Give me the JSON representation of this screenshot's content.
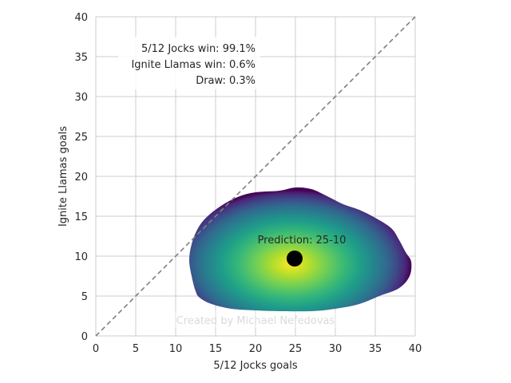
{
  "chart_data": {
    "type": "heatmap",
    "title": "",
    "xlabel": "5/12 Jocks goals",
    "ylabel": "Ignite Llamas goals",
    "xlim": [
      0,
      40
    ],
    "ylim": [
      0,
      40
    ],
    "x_ticks": [
      "0",
      "5",
      "10",
      "15",
      "20",
      "25",
      "30",
      "35",
      "40"
    ],
    "y_ticks": [
      "0",
      "5",
      "10",
      "15",
      "20",
      "25",
      "30",
      "35",
      "40"
    ],
    "grid": true,
    "colormap": "viridis",
    "diagonal": {
      "from": [
        0,
        0
      ],
      "to": [
        40,
        40
      ],
      "style": "dashed",
      "color": "#808080"
    },
    "density": {
      "center": [
        24.5,
        9
      ],
      "boundary": [
        [
          12.5,
          5.6
        ],
        [
          12,
          7.5
        ],
        [
          11.7,
          9.5
        ],
        [
          12,
          11.5
        ],
        [
          12.8,
          13.5
        ],
        [
          14,
          15
        ],
        [
          16,
          16.5
        ],
        [
          18,
          17.5
        ],
        [
          20,
          18
        ],
        [
          23,
          18.2
        ],
        [
          25,
          18.6
        ],
        [
          27,
          18.4
        ],
        [
          29,
          17.5
        ],
        [
          31,
          16.5
        ],
        [
          33,
          15.8
        ],
        [
          35,
          14.8
        ],
        [
          37,
          13.5
        ],
        [
          38,
          12
        ],
        [
          38.8,
          10.5
        ],
        [
          39.5,
          9.3
        ],
        [
          39.3,
          7.5
        ],
        [
          38,
          6
        ],
        [
          35.5,
          5
        ],
        [
          33,
          4
        ],
        [
          30,
          3.4
        ],
        [
          27,
          3.1
        ],
        [
          23,
          3.1
        ],
        [
          20,
          3.2
        ],
        [
          17,
          3.4
        ],
        [
          14.5,
          4
        ],
        [
          13,
          4.8
        ]
      ]
    },
    "prediction": {
      "x": 25,
      "y": 10,
      "label": "Prediction: 25-10"
    },
    "annotations": {
      "win_team1": "5/12 Jocks win: 99.1%",
      "win_team2": "Ignite Llamas win: 0.6%",
      "draw": "Draw: 0.3%"
    },
    "watermark": "Created by Michael Nefedovas"
  }
}
